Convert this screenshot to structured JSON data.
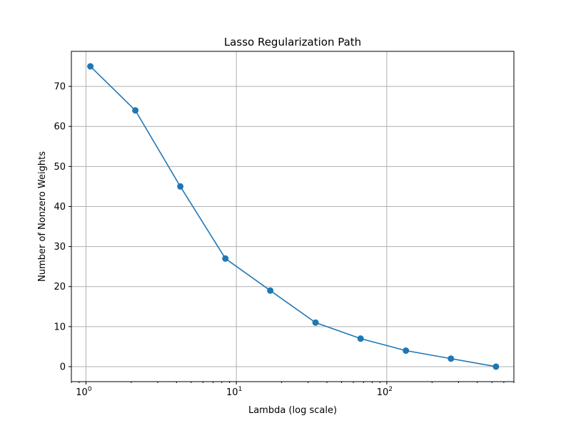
{
  "chart_data": {
    "type": "line",
    "title": "Lasso Regularization Path",
    "xlabel": "Lambda (log scale)",
    "ylabel": "Number of Nonzero Weights",
    "xscale": "log",
    "xlim": [
      0.8,
      700
    ],
    "ylim": [
      -3.75,
      78.75
    ],
    "grid": true,
    "x_ticks": [
      {
        "base": "10",
        "exp": "0",
        "value": 1
      },
      {
        "base": "10",
        "exp": "1",
        "value": 10
      },
      {
        "base": "10",
        "exp": "2",
        "value": 100
      }
    ],
    "y_ticks": [
      0,
      10,
      20,
      30,
      40,
      50,
      60,
      70
    ],
    "series": [
      {
        "color": "#1f77b4",
        "marker": "circle",
        "x": [
          1.07,
          2.13,
          4.24,
          8.45,
          16.8,
          33.6,
          67.0,
          134,
          267,
          532
        ],
        "y": [
          75,
          64,
          45,
          27,
          19,
          11,
          7,
          4,
          2,
          0
        ]
      }
    ]
  }
}
